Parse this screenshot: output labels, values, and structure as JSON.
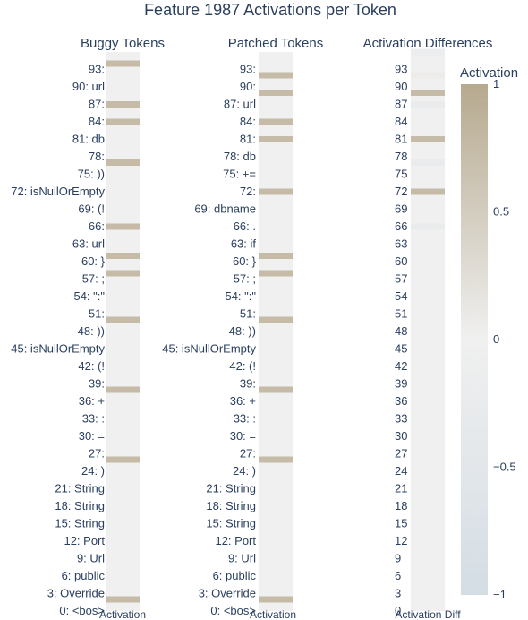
{
  "chart_data": {
    "type": "heatmap",
    "title": "Feature 1987 Activations per Token",
    "panels": [
      {
        "title": "Buggy Tokens",
        "xlabel": "Activation",
        "tick_labels": [
          "0: <bos>",
          "3: Override",
          "6: public",
          "9: Url",
          "12: Port",
          "15: String",
          "18: String",
          "21: String",
          "24: )",
          "27: ",
          "30: =",
          "33: :",
          "36: +",
          "39: ",
          "42: (!",
          "45: isNullOrEmpty",
          "48: ))",
          "51: ",
          "54: \":\"",
          "57: ;",
          "60: }",
          "63: url",
          "66: ",
          "69: (!",
          "72: isNullOrEmpty",
          "75: ))",
          "78: ",
          "81: db",
          "84: ",
          "87: ",
          "90: url",
          "93: "
        ],
        "cells": [
          {
            "pos": 2,
            "value": 0.75
          },
          {
            "pos": 26,
            "value": 0.75
          },
          {
            "pos": 38,
            "value": 0.75
          },
          {
            "pos": 50,
            "value": 0.75
          },
          {
            "pos": 58,
            "value": 0.75
          },
          {
            "pos": 61,
            "value": 0.75
          },
          {
            "pos": 66,
            "value": 0.75
          },
          {
            "pos": 77,
            "value": 0.75
          },
          {
            "pos": 84,
            "value": 0.75
          },
          {
            "pos": 87,
            "value": 0.75
          },
          {
            "pos": 94,
            "value": 0.75
          }
        ]
      },
      {
        "title": "Patched Tokens",
        "xlabel": "Activation",
        "tick_labels": [
          "0: <bos>",
          "3: Override",
          "6: public",
          "9: Url",
          "12: Port",
          "15: String",
          "18: String",
          "21: String",
          "24: )",
          "27: ",
          "30: =",
          "33: :",
          "36: +",
          "39: ",
          "42: (!",
          "45: isNullOrEmpty",
          "48: ))",
          "51: ",
          "54: \":\"",
          "57: ;",
          "60: }",
          "63: if",
          "66: .",
          "69: dbname",
          "72: ",
          "75: +=",
          "78: db",
          "81: ",
          "84: ",
          "87: url",
          "90: ",
          "93: "
        ],
        "cells": [
          {
            "pos": 2,
            "value": 0.75
          },
          {
            "pos": 26,
            "value": 0.75
          },
          {
            "pos": 38,
            "value": 0.75
          },
          {
            "pos": 50,
            "value": 0.75
          },
          {
            "pos": 58,
            "value": 0.75
          },
          {
            "pos": 61,
            "value": 0.75
          },
          {
            "pos": 72,
            "value": 0.75
          },
          {
            "pos": 81,
            "value": 0.75
          },
          {
            "pos": 84,
            "value": 0.75
          },
          {
            "pos": 89,
            "value": 0.75
          },
          {
            "pos": 92,
            "value": 0.75
          }
        ]
      },
      {
        "title": "Activation Differences",
        "xlabel": "Activation Diff",
        "tick_labels": [
          "0",
          "3",
          "6",
          "9",
          "12",
          "15",
          "18",
          "21",
          "24",
          "27",
          "30",
          "33",
          "36",
          "39",
          "42",
          "45",
          "48",
          "51",
          "54",
          "57",
          "60",
          "63",
          "66",
          "69",
          "72",
          "75",
          "78",
          "81",
          "84",
          "87",
          "90",
          "93"
        ],
        "cells": [
          {
            "pos": 66,
            "value": -0.25
          },
          {
            "pos": 72,
            "value": 0.75
          },
          {
            "pos": 77,
            "value": -0.25
          },
          {
            "pos": 81,
            "value": 0.75
          },
          {
            "pos": 87,
            "value": -0.25
          },
          {
            "pos": 89,
            "value": 0.75
          },
          {
            "pos": 92,
            "value": 0.05
          },
          {
            "pos": 96,
            "value": -0.15
          }
        ]
      }
    ],
    "y_range": [
      0,
      96
    ],
    "colorscale": {
      "low": "#d4dde4",
      "mid": "#f0f0f0",
      "high": "#b6a98e",
      "range": [
        -1,
        1
      ]
    },
    "colorbar": {
      "title": "Activation",
      "ticks": [
        {
          "value": 1,
          "label": "1"
        },
        {
          "value": 0.5,
          "label": "0.5"
        },
        {
          "value": 0,
          "label": "0"
        },
        {
          "value": -0.5,
          "label": "−0.5"
        },
        {
          "value": -1,
          "label": "−1"
        }
      ]
    },
    "grid": false
  }
}
